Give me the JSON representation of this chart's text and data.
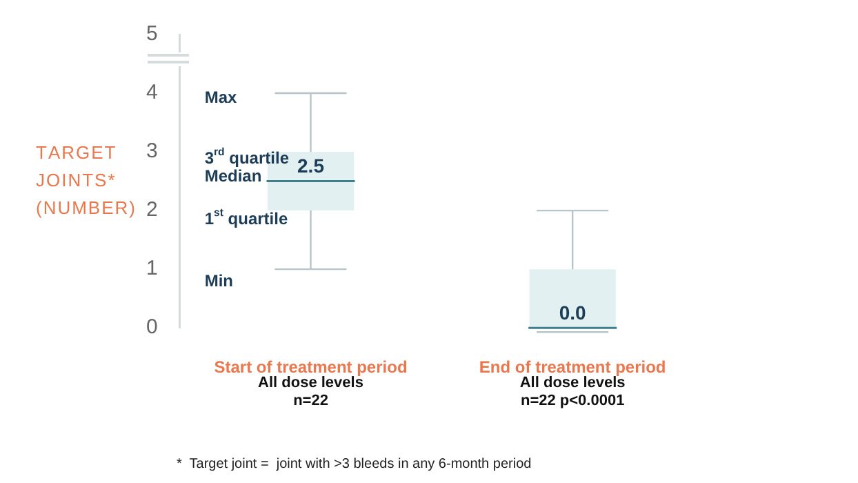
{
  "chart_data": {
    "type": "box",
    "ylabel": "TARGET JOINTS* (NUMBER)",
    "categories": [
      "Start of treatment period",
      "End of treatment period"
    ],
    "boxes": [
      {
        "low": 1,
        "q1": 2,
        "median": 2.5,
        "q3": 3,
        "high": 4
      },
      {
        "low": 0,
        "q1": 0,
        "median": 0,
        "q3": 1,
        "high": 2
      }
    ],
    "color": "#e3f0f2",
    "ylim": [
      0,
      5
    ],
    "yticks": [
      0,
      1,
      2,
      3,
      4,
      5
    ],
    "grid": false,
    "legend": false,
    "annotations": [
      "Max",
      "3$^{rd}$ quartile",
      "Median",
      "1$^{st}$ quartile",
      "Min",
      {
        "text": "2.5",
        "x": "Start of treatment period",
        "y": 2.5
      },
      {
        "text": "0.0",
        "x": "End of treatment period",
        "y": 0
      },
      "All dose levels\nn=22",
      "All dose levels\nn=22 p<0.0001",
      "*  Target joint =  joint with >3 bleeds in any 6-month period"
    ]
  }
}
